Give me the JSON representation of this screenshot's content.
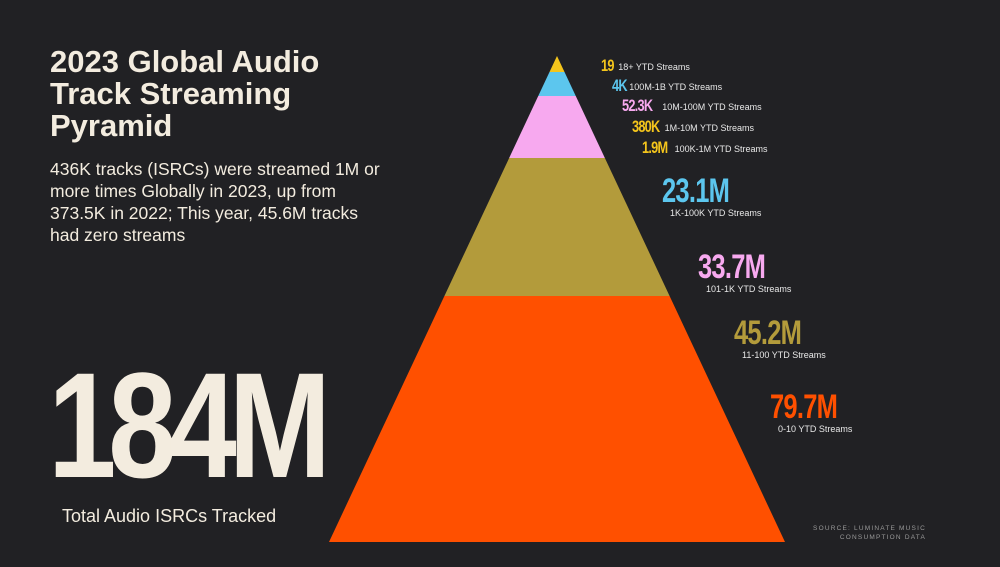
{
  "header": {
    "title_lines": [
      "2023 Global Audio",
      "Track Streaming",
      "Pyramid"
    ],
    "subtitle": "436K tracks (ISRCs) were streamed 1M or more times Globally in 2023, up from 373.5K in 2022; This year, 45.6M tracks had zero streams"
  },
  "total": {
    "value": "184M",
    "label": "Total Audio ISRCs Tracked"
  },
  "source": [
    "SOURCE: LUMINATE MUSIC",
    "CONSUMPTION DATA"
  ],
  "chart_data": {
    "type": "pyramid",
    "title": "2023 Global Audio Track Streaming Pyramid",
    "tiers": [
      {
        "value_label": "19",
        "value": 19,
        "category": "18+ YTD Streams",
        "color": "#f4c51c"
      },
      {
        "value_label": "4K",
        "value": 4000,
        "category": "100M-1B YTD Streams",
        "color": "#5cc6ee"
      },
      {
        "value_label": "52.3K",
        "value": 52300,
        "category": "10M-100M YTD Streams",
        "color": "#f7a9ef"
      },
      {
        "value_label": "380K",
        "value": 380000,
        "category": "1M-10M YTD Streams",
        "color": "#f4c51c"
      },
      {
        "value_label": "1.9M",
        "value": 1900000,
        "category": "100K-1M YTD Streams",
        "color": "#f4c51c"
      },
      {
        "value_label": "23.1M",
        "value": 23100000,
        "category": "1K-100K YTD Streams",
        "color": "#5cc6ee"
      },
      {
        "value_label": "33.7M",
        "value": 33700000,
        "category": "101-1K YTD Streams",
        "color": "#f7a9ef"
      },
      {
        "value_label": "45.2M",
        "value": 45200000,
        "category": "11-100 YTD Streams",
        "color": "#b39b3b"
      },
      {
        "value_label": "79.7M",
        "value": 79700000,
        "category": "0-10 YTD Streams",
        "color": "#ff5000"
      }
    ],
    "bands": [
      {
        "color": "#f4c51c"
      },
      {
        "color": "#5cc6ee"
      },
      {
        "color": "#f7a9ef"
      },
      {
        "color": "#b39b3b"
      },
      {
        "color": "#ff5000"
      }
    ]
  }
}
